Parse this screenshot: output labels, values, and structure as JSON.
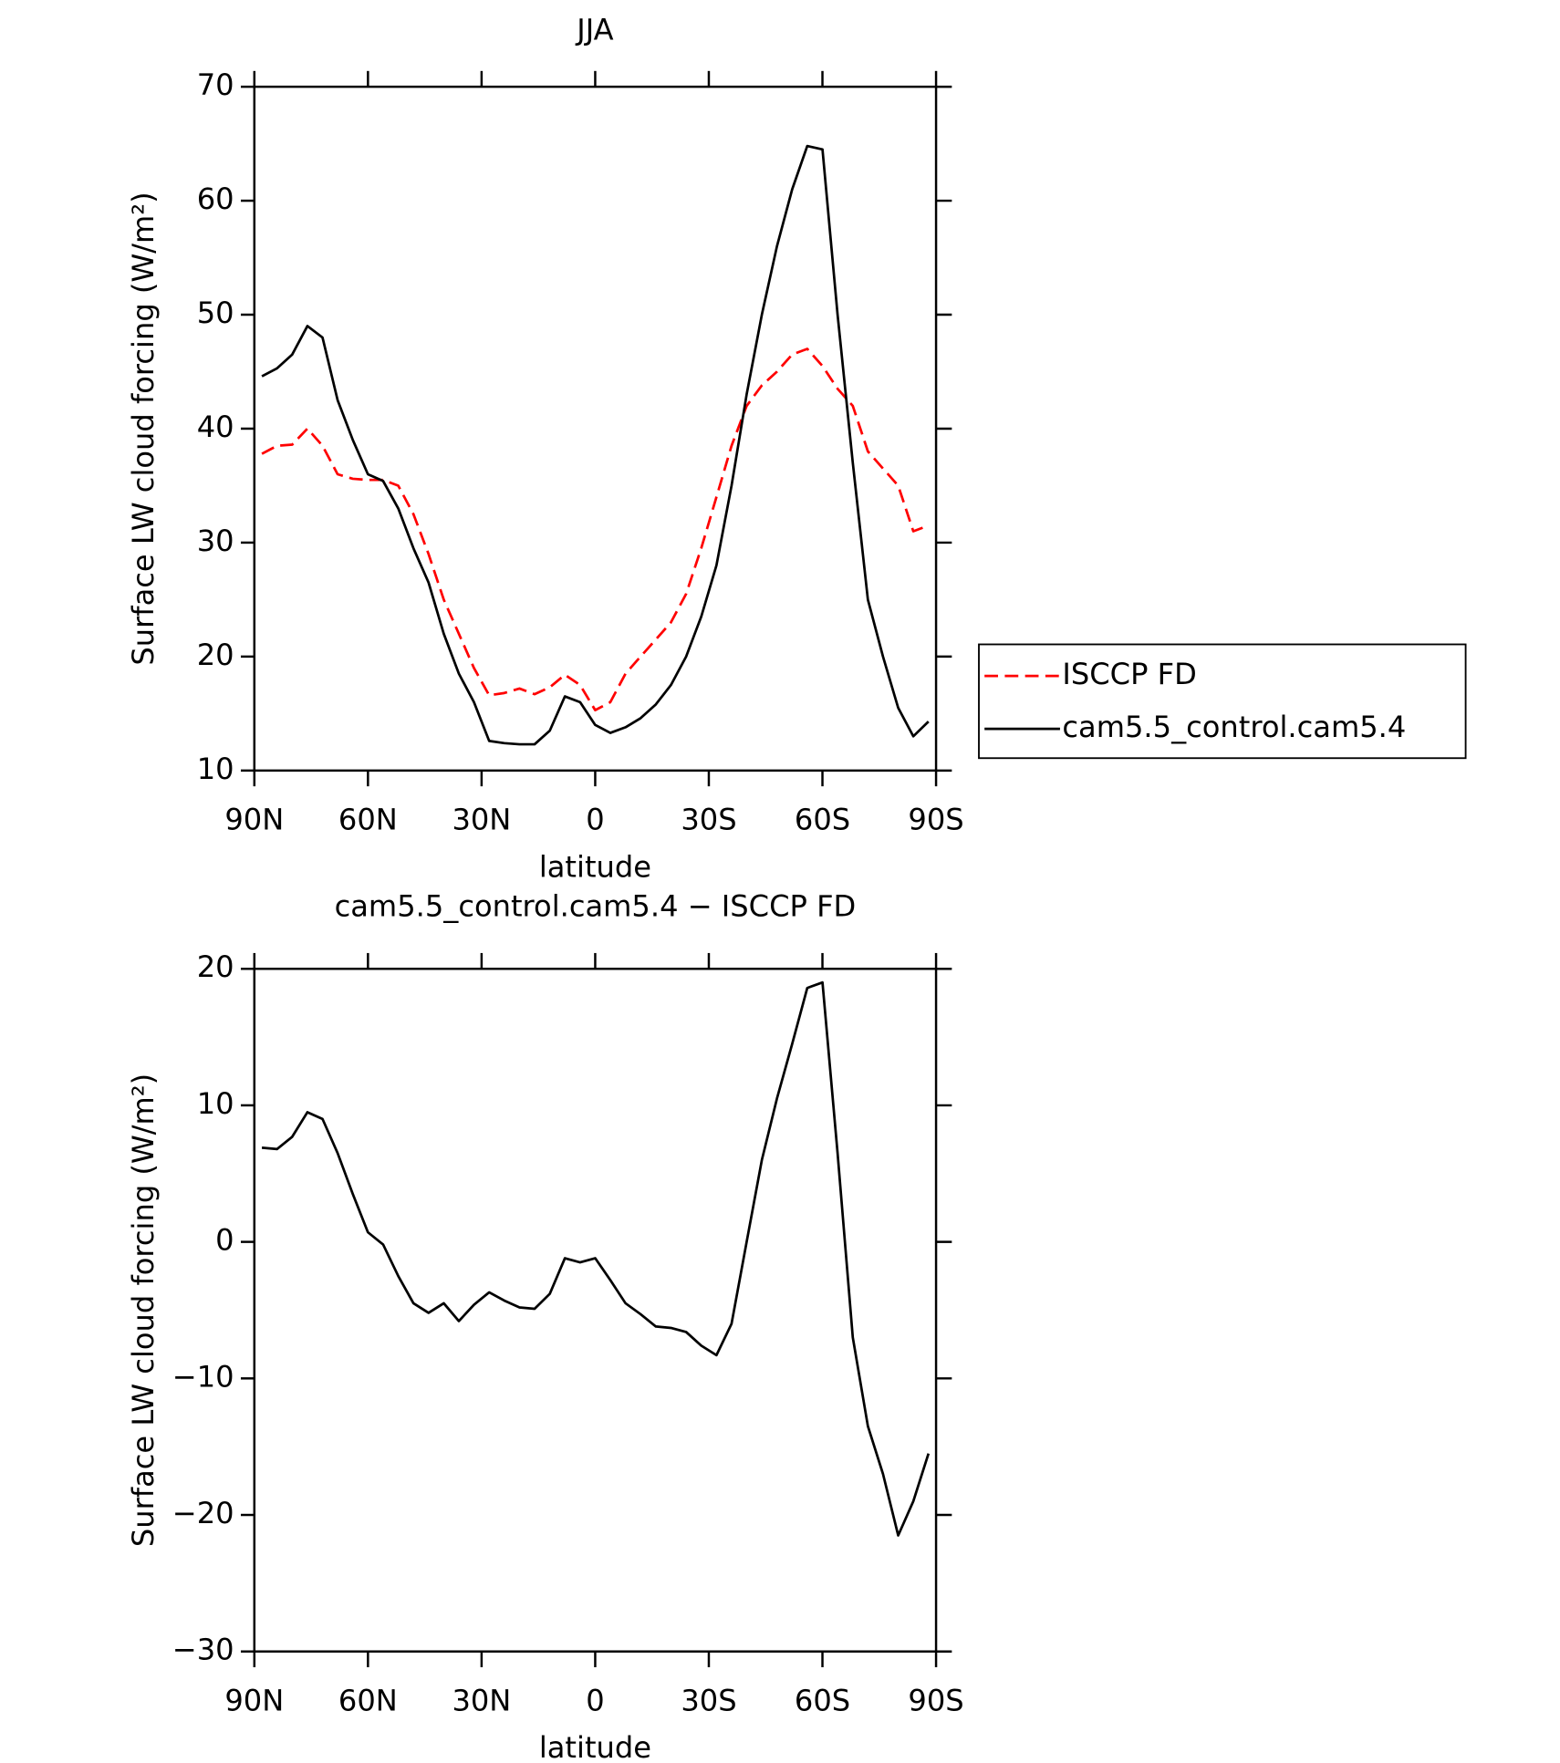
{
  "chart_data": [
    {
      "type": "line",
      "title": "JJA",
      "x_label": "latitude",
      "y_label": "Surface LW cloud forcing (W/m²)",
      "x": [
        88,
        84,
        80,
        76,
        72,
        68,
        64,
        60,
        56,
        52,
        48,
        44,
        40,
        36,
        32,
        28,
        24,
        20,
        16,
        12,
        8,
        4,
        0,
        -4,
        -8,
        -12,
        -16,
        -20,
        -24,
        -28,
        -32,
        -36,
        -40,
        -44,
        -48,
        -52,
        -56,
        -60,
        -64,
        -68,
        -72,
        -76,
        -80,
        -84,
        -88
      ],
      "xlim": [
        90,
        -90
      ],
      "xticks": [
        {
          "value": 90,
          "label": "90N"
        },
        {
          "value": 60,
          "label": "60N"
        },
        {
          "value": 30,
          "label": "30N"
        },
        0,
        {
          "value": -30,
          "label": "30S"
        },
        {
          "value": -60,
          "label": "60S"
        },
        {
          "value": -90,
          "label": "90S"
        }
      ],
      "ylim": [
        10,
        70
      ],
      "yticks": [
        10,
        20,
        30,
        40,
        50,
        60,
        70
      ],
      "legend": "right",
      "series": [
        {
          "name": "ISCCP FD",
          "color": "#ff0000",
          "line_style": "dashed",
          "values": [
            37.8,
            38.5,
            38.6,
            40,
            38.5,
            36,
            35.6,
            35.5,
            35.5,
            35,
            32.5,
            29,
            25,
            22,
            19,
            16.6,
            16.8,
            17.2,
            16.7,
            17.3,
            18.4,
            17.5,
            15.3,
            16,
            18.5,
            20,
            21.5,
            23,
            25.5,
            29.5,
            34,
            38.5,
            42,
            43.8,
            45,
            46.5,
            47,
            45.5,
            43.5,
            42,
            38,
            36.5,
            35,
            31,
            31.5
          ]
        },
        {
          "name": "cam5.5_control.cam5.4",
          "color": "#000000",
          "line_style": "solid",
          "values": [
            44.6,
            45.3,
            46.5,
            49,
            48,
            42.5,
            39,
            36,
            35.4,
            33,
            29.5,
            26.5,
            22,
            18.5,
            16,
            12.6,
            12.4,
            12.3,
            12.3,
            13.5,
            16.5,
            16,
            14,
            13.3,
            13.8,
            14.6,
            15.8,
            17.5,
            20,
            23.5,
            28,
            35,
            43,
            50,
            56,
            61,
            64.8,
            64.5,
            50,
            37,
            25,
            20,
            15.5,
            13,
            14.3
          ]
        }
      ]
    },
    {
      "type": "line",
      "title": "cam5.5_control.cam5.4 − ISCCP FD",
      "x_label": "latitude",
      "y_label": "Surface LW cloud forcing (W/m²)",
      "x": [
        88,
        84,
        80,
        76,
        72,
        68,
        64,
        60,
        56,
        52,
        48,
        44,
        40,
        36,
        32,
        28,
        24,
        20,
        16,
        12,
        8,
        4,
        0,
        -4,
        -8,
        -12,
        -16,
        -20,
        -24,
        -28,
        -32,
        -36,
        -40,
        -44,
        -48,
        -52,
        -56,
        -60,
        -64,
        -68,
        -72,
        -76,
        -80,
        -84,
        -88
      ],
      "xlim": [
        90,
        -90
      ],
      "xticks": [
        {
          "value": 90,
          "label": "90N"
        },
        {
          "value": 60,
          "label": "60N"
        },
        {
          "value": 30,
          "label": "30N"
        },
        0,
        {
          "value": -30,
          "label": "30S"
        },
        {
          "value": -60,
          "label": "60S"
        },
        {
          "value": -90,
          "label": "90S"
        }
      ],
      "ylim": [
        -30,
        20
      ],
      "yticks": [
        {
          "value": -30,
          "label": "−30"
        },
        {
          "value": -20,
          "label": "−20"
        },
        {
          "value": -10,
          "label": "−10"
        },
        0,
        10,
        20
      ],
      "series": [
        {
          "color": "#000000",
          "line_style": "solid",
          "values": [
            6.9,
            6.8,
            7.7,
            9.5,
            9,
            6.5,
            3.5,
            0.7,
            -0.2,
            -2.5,
            -4.5,
            -5.2,
            -4.5,
            -5.8,
            -4.6,
            -3.7,
            -4.3,
            -4.8,
            -4.9,
            -3.8,
            -1.2,
            -1.5,
            -1.2,
            -2.8,
            -4.5,
            -5.3,
            -6.2,
            -6.3,
            -6.6,
            -7.6,
            -8.3,
            -6,
            0,
            6,
            10.5,
            14.5,
            18.6,
            19,
            6.5,
            -7,
            -13.5,
            -17,
            -21.5,
            -19,
            -15.5
          ]
        }
      ]
    }
  ]
}
